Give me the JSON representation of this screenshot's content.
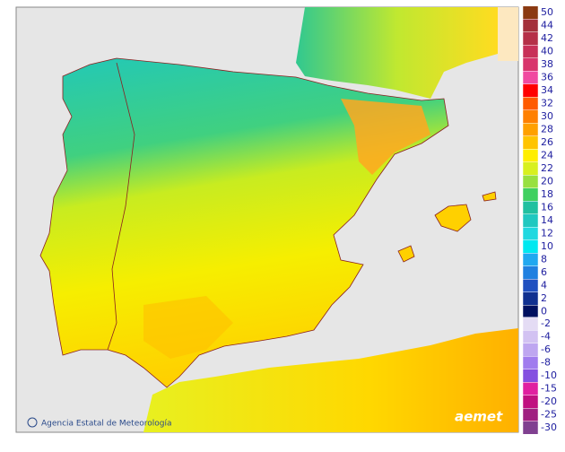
{
  "legend": {
    "entries": [
      {
        "value": 50,
        "color": "#8b3a12"
      },
      {
        "value": 44,
        "color": "#a3303a"
      },
      {
        "value": 42,
        "color": "#b53048"
      },
      {
        "value": 40,
        "color": "#c83058"
      },
      {
        "value": 38,
        "color": "#d8356c"
      },
      {
        "value": 36,
        "color": "#f04aa0"
      },
      {
        "value": 34,
        "color": "#ff0000"
      },
      {
        "value": 32,
        "color": "#ff5a00"
      },
      {
        "value": 30,
        "color": "#ff8000"
      },
      {
        "value": 28,
        "color": "#ffa000"
      },
      {
        "value": 26,
        "color": "#ffc400"
      },
      {
        "value": 24,
        "color": "#ffee00"
      },
      {
        "value": 22,
        "color": "#d8f020"
      },
      {
        "value": 20,
        "color": "#98e040"
      },
      {
        "value": 18,
        "color": "#40d060"
      },
      {
        "value": 16,
        "color": "#20c0a0"
      },
      {
        "value": 14,
        "color": "#20c8c0"
      },
      {
        "value": 12,
        "color": "#20d8e0"
      },
      {
        "value": 10,
        "color": "#00e8f0"
      },
      {
        "value": 8,
        "color": "#20a8f0"
      },
      {
        "value": 6,
        "color": "#2080e0"
      },
      {
        "value": 4,
        "color": "#2050c0"
      },
      {
        "value": 2,
        "color": "#103090"
      },
      {
        "value": 0,
        "color": "#001060"
      }
    ],
    "negative_entries": [
      {
        "value": -2,
        "color": "#e4dcf4"
      },
      {
        "value": -4,
        "color": "#d2c2f2"
      },
      {
        "value": -6,
        "color": "#bea6f0"
      },
      {
        "value": -8,
        "color": "#a07cee"
      },
      {
        "value": -10,
        "color": "#8450e0"
      },
      {
        "value": -15,
        "color": "#e020a0"
      },
      {
        "value": -20,
        "color": "#c01080"
      },
      {
        "value": -25,
        "color": "#a02080"
      },
      {
        "value": -30,
        "color": "#804090"
      }
    ]
  },
  "credit": "Agencia Estatal de Meteorología",
  "logo": "aemet"
}
